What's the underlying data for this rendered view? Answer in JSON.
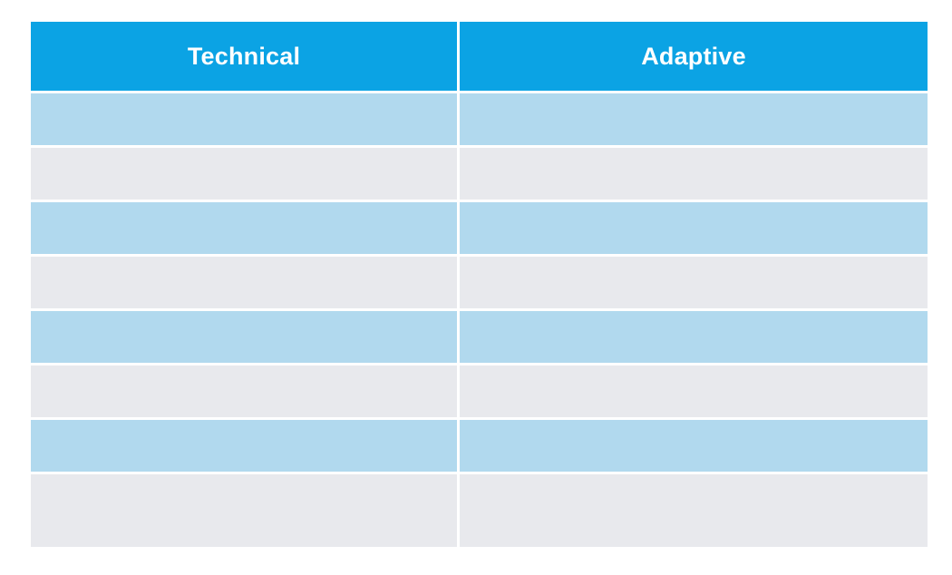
{
  "colors": {
    "header": "#0ba3e4",
    "row_light_blue": "#b1d9ee",
    "row_gray": "#e8e9ed",
    "gridline": "#ffffff"
  },
  "table": {
    "columns": [
      {
        "label": "Technical"
      },
      {
        "label": "Adaptive"
      }
    ],
    "rows": [
      {
        "technical": "",
        "adaptive": "",
        "style": "light_blue"
      },
      {
        "technical": "",
        "adaptive": "",
        "style": "gray"
      },
      {
        "technical": "",
        "adaptive": "",
        "style": "light_blue"
      },
      {
        "technical": "",
        "adaptive": "",
        "style": "gray"
      },
      {
        "technical": "",
        "adaptive": "",
        "style": "light_blue"
      },
      {
        "technical": "",
        "adaptive": "",
        "style": "gray"
      },
      {
        "technical": "",
        "adaptive": "",
        "style": "light_blue"
      },
      {
        "technical": "",
        "adaptive": "",
        "style": "gray"
      }
    ]
  }
}
